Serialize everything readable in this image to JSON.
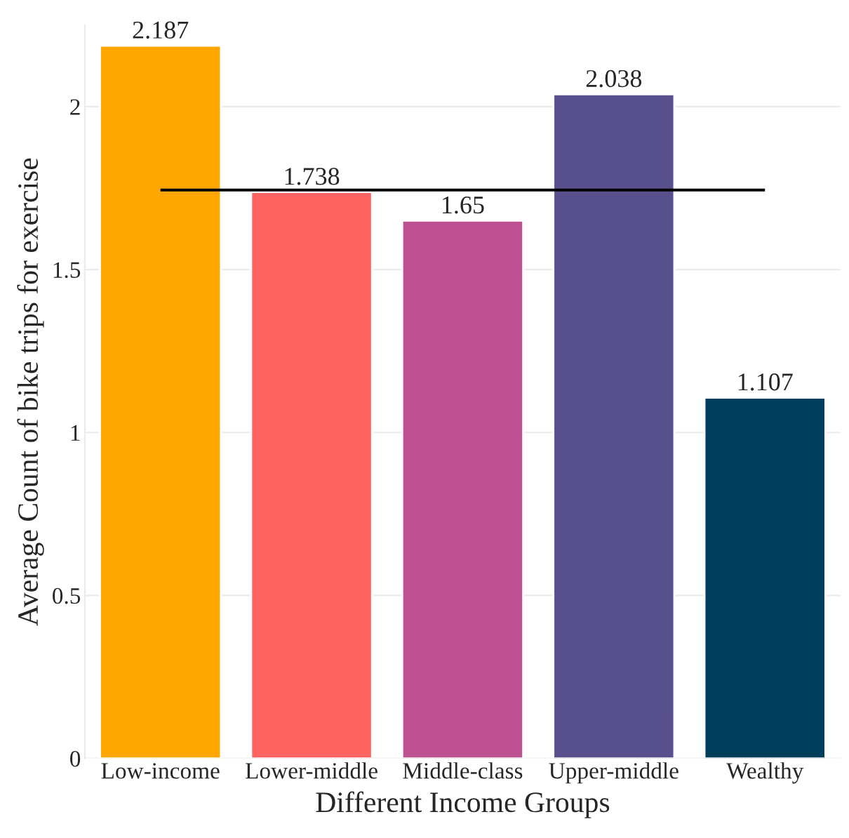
{
  "chart_data": {
    "type": "bar",
    "xlabel": "Different Income Groups",
    "ylabel": "Average Count of bike trips for exercise",
    "categories": [
      "Low-income",
      "Lower-middle",
      "Middle-class",
      "Upper-middle",
      "Wealthy"
    ],
    "values": [
      2.187,
      1.738,
      1.65,
      2.038,
      1.107
    ],
    "colors": [
      "#ffa600",
      "#ff6361",
      "#bc5090",
      "#58508d",
      "#003f5c"
    ],
    "data_labels": true,
    "ylim": [
      0,
      2.25
    ],
    "yticks": [
      0,
      0.5,
      1,
      1.5,
      2
    ],
    "grid": "y",
    "ref_lines": [
      {
        "axis": "y",
        "value": 1.744,
        "color": "#000000"
      }
    ]
  }
}
